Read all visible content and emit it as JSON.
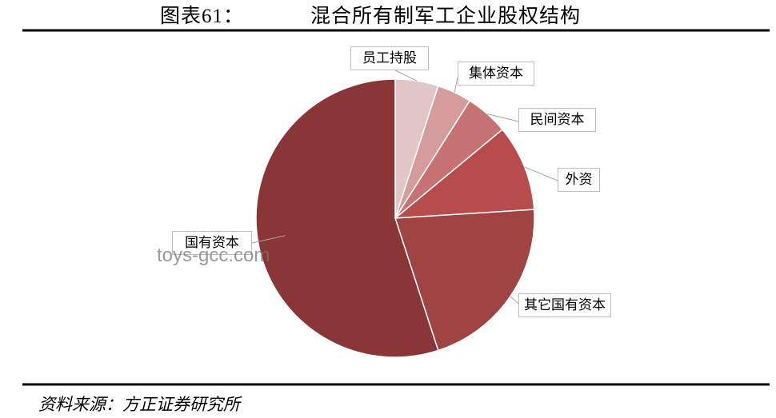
{
  "chart_data": {
    "type": "pie",
    "title_label": "图表61：",
    "title": "混合所有制军工企业股权结构",
    "categories": [
      "员工持股",
      "集体资本",
      "民间资本",
      "外资",
      "其它国有资本",
      "国有资本"
    ],
    "values": [
      5,
      4,
      5,
      10,
      21,
      55
    ],
    "colors": [
      "#e2c6c6",
      "#d59c9c",
      "#c87373",
      "#b84c4c",
      "#a04343",
      "#8b3636"
    ],
    "source": "资料来源：方正证券研究所",
    "watermark": "toys-gcc.com"
  }
}
